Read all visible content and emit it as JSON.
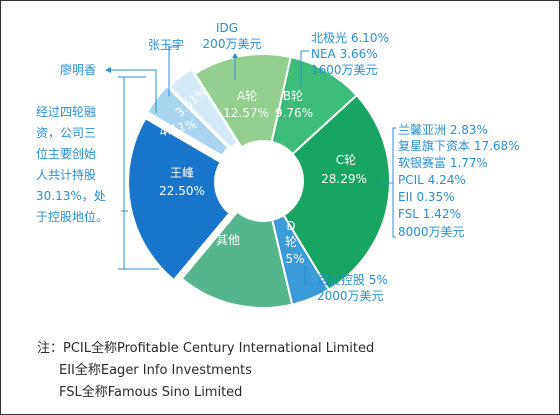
{
  "colors": {
    "round_a": "#93cf8f",
    "round_b": "#3dbb79",
    "round_c": "#19a463",
    "round_d": "#3b9ad8",
    "others": "#55b58d",
    "wang_feng": "#1975c9",
    "liao_mingxiang": "#a9d5f0",
    "zhang_yuyu": "#d6ebf8",
    "annotation": "#2b8fd0",
    "text": "#2a2a2a"
  },
  "chart_data": {
    "type": "pie",
    "variant": "donut",
    "slices": [
      {
        "label": "A轮",
        "value": 12.57,
        "value_text": "12.57%"
      },
      {
        "label": "B轮",
        "value": 9.76,
        "value_text": "9.76%"
      },
      {
        "label": "C轮",
        "value": 28.29,
        "value_text": "28.29%"
      },
      {
        "label": "D轮",
        "value": 5,
        "value_text": "5%"
      },
      {
        "label": "其他",
        "value": 14.81,
        "value_text": ""
      },
      {
        "label": "王峰",
        "value": 22.5,
        "value_text": "22.50%"
      },
      {
        "label": "",
        "value": 4.11,
        "value_text": "4.11%"
      },
      {
        "label": "",
        "value": 3.51,
        "value_text": "3.51%"
      }
    ],
    "annotations": {
      "idg": [
        "IDG",
        "200万美元"
      ],
      "zhang": [
        "张玉宇"
      ],
      "liao": [
        "廖明香"
      ],
      "round_b": [
        "北极光 6.10%",
        "NEA 3.66%",
        "1600万美元"
      ],
      "round_c": [
        "兰馨亚洲 2.83%",
        "复星旗下资本 17.68%",
        "软银赛富 1.77%",
        "PCIL 4.24%",
        "EII 0.35%",
        "FSL 1.42%",
        "8000万美元"
      ],
      "round_d": [
        "百度控股 5%",
        "2000万美元"
      ],
      "wang": [
        "经过四轮融",
        "资，公司三",
        "位主要创始",
        "人共计持股",
        "30.13%，处",
        "于控股地位。"
      ]
    },
    "notes": [
      "注：PCIL全称Profitable Century International Limited",
      "EII全称Eager Info Investments",
      "FSL全称Famous Sino Limited"
    ]
  }
}
